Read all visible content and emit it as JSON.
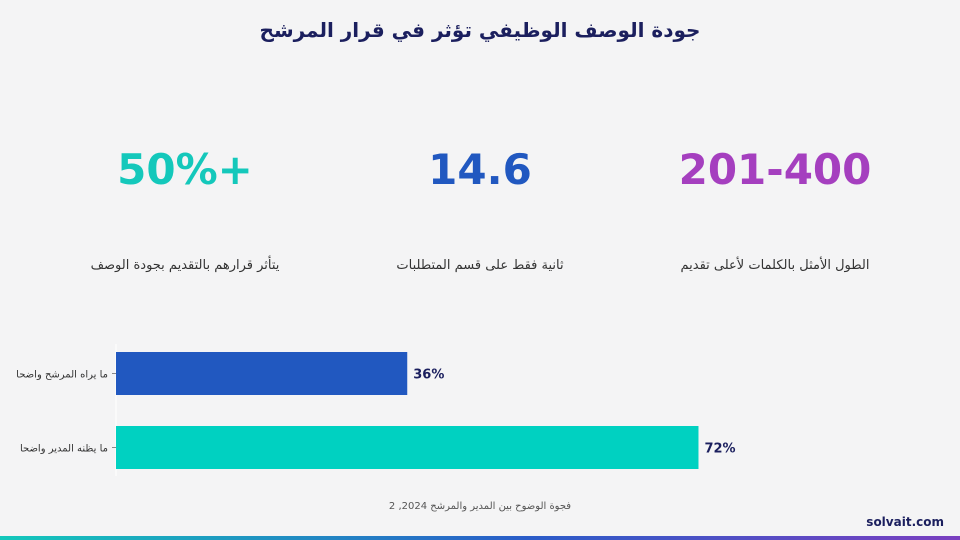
{
  "title": "جودة الوصف الوظيفي تؤثر في قرار المرشح",
  "stats": [
    {
      "value": "50%+",
      "label": "يتأثر قرارهم بالتقديم بجودة الوصف",
      "color": "#14c8bb"
    },
    {
      "value": "14.6",
      "label": "ثانية فقط على قسم المتطلبات",
      "color": "#2158c0"
    },
    {
      "value": "201-400",
      "label": "الطول الأمثل بالكلمات لأعلى تقديم",
      "color": "#a53fbf"
    }
  ],
  "chart_data": {
    "type": "bar",
    "orientation": "horizontal",
    "categories": [
      "ما يراه المرشح واضحا",
      "ما يظنه المدير واضحا"
    ],
    "values": [
      36,
      72
    ],
    "value_labels": [
      "36%",
      "72%"
    ],
    "colors": [
      "#2158c0",
      "#00d1c1"
    ],
    "xlim": [
      0,
      100
    ]
  },
  "caption": "فجوة الوضوح بين المدير والمرشح 2024, 2",
  "brand": "solvait.com"
}
